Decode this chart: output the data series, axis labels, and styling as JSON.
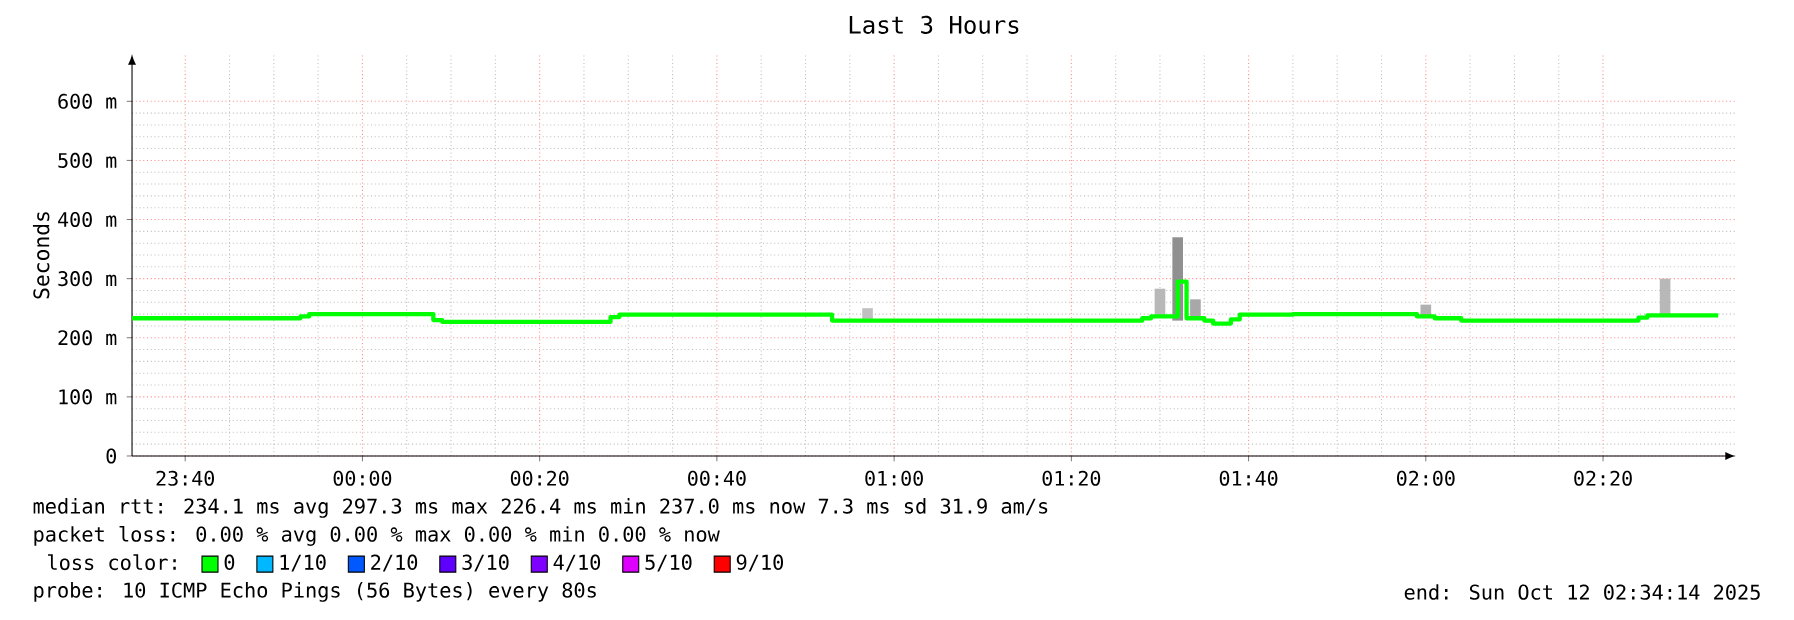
{
  "chart_data": {
    "type": "step",
    "title": "Last 3 Hours",
    "ylabel": "Seconds",
    "legend_title": "loss color:",
    "xlim": [
      "2025-10-11T23:34",
      "2025-10-12T02:35"
    ],
    "xticks": [
      {
        "value": "2025-10-11T23:40",
        "label": "23:40"
      },
      {
        "value": "2025-10-12T00:00",
        "label": "00:00"
      },
      {
        "value": "2025-10-12T00:20",
        "label": "00:20"
      },
      {
        "value": "2025-10-12T00:40",
        "label": "00:40"
      },
      {
        "value": "2025-10-12T01:00",
        "label": "01:00"
      },
      {
        "value": "2025-10-12T01:20",
        "label": "01:20"
      },
      {
        "value": "2025-10-12T01:40",
        "label": "01:40"
      },
      {
        "value": "2025-10-12T02:00",
        "label": "02:00"
      },
      {
        "value": "2025-10-12T02:20",
        "label": "02:20"
      }
    ],
    "ylim": [
      0,
      680
    ],
    "yticks": [
      0,
      {
        "value": 100,
        "label": "100 m"
      },
      {
        "value": 200,
        "label": "200 m"
      },
      {
        "value": 300,
        "label": "300 m"
      },
      {
        "value": 400,
        "label": "400 m"
      },
      {
        "value": 500,
        "label": "500 m"
      },
      {
        "value": 600,
        "label": "600 m"
      }
    ],
    "grid": true,
    "legend": "bottom",
    "marker": "none",
    "series": [
      {
        "type": "bar",
        "x": [
          "2025-10-12T00:57",
          "2025-10-12T01:30",
          "2025-10-12T01:32",
          "2025-10-12T01:34",
          "2025-10-12T02:00",
          "2025-10-12T02:27"
        ],
        "base": [
          229,
          236,
          229,
          232,
          236,
          238
        ],
        "values": [
          21,
          47,
          141,
          33,
          20,
          62
        ],
        "colors": [
          "#c0c0c0",
          "#b8b8b8",
          "#909090",
          "#a8a8a8",
          "#b0b0b0",
          "#b8b8b8"
        ]
      },
      {
        "name": "0",
        "color": "#00ff00",
        "x": [
          "2025-10-11T23:34",
          "2025-10-11T23:53",
          "2025-10-11T23:54",
          "2025-10-12T00:08",
          "2025-10-12T00:09",
          "2025-10-12T00:28",
          "2025-10-12T00:29",
          "2025-10-12T00:53",
          "2025-10-12T01:28",
          "2025-10-12T01:29",
          "2025-10-12T01:32",
          "2025-10-12T01:33",
          "2025-10-12T01:35",
          "2025-10-12T01:36",
          "2025-10-12T01:38",
          "2025-10-12T01:39",
          "2025-10-12T01:45",
          "2025-10-12T01:59",
          "2025-10-12T02:01",
          "2025-10-12T02:04",
          "2025-10-12T02:24",
          "2025-10-12T02:25",
          "2025-10-12T02:33"
        ],
        "values": [
          233,
          236,
          240,
          230,
          227,
          235,
          239,
          229,
          233,
          236,
          295,
          233,
          229,
          224,
          231,
          239,
          240,
          236,
          233,
          229,
          234,
          238,
          238
        ]
      },
      {
        "name": "1/10",
        "color": "#00b8ff"
      },
      {
        "name": "2/10",
        "color": "#0059ff"
      },
      {
        "name": "3/10",
        "color": "#5e00ff"
      },
      {
        "name": "4/10",
        "color": "#7e00ff"
      },
      {
        "name": "5/10",
        "color": "#dd00ff"
      },
      {
        "name": "9/10",
        "color": "#ff0000"
      }
    ],
    "annotations": [
      "median rtt:  234.1 ms avg   297.3 ms max   226.4 ms min   237.0 ms now   7.3 ms sd   31.9   am/s",
      "packet loss: 0.00 % avg  0.00 % max  0.00 % min  0.00 % now",
      "probe:       10 ICMP Echo Pings (56 Bytes) every 80s",
      "end: Sun Oct 12 02:34:14 2025"
    ]
  }
}
